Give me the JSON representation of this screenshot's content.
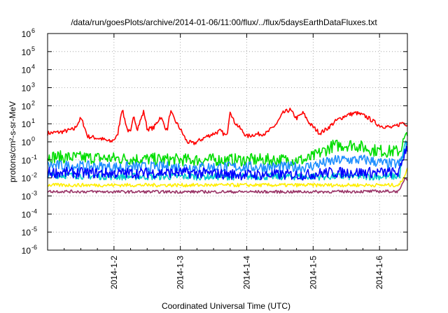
{
  "chart_data": {
    "type": "line",
    "title": "/data/run/goesPlots/archive/2014-01-06/11:00/flux/../flux/5daysEarthDataFluxes.txt",
    "xlabel": "Coordinated Universal Time (UTC)",
    "ylabel": "protons/cm²-s-sr-MeV",
    "yscale": "log",
    "ylim_exponents": [
      -6,
      6
    ],
    "xlim_days": [
      0,
      5.42
    ],
    "grid": true,
    "legend": "none",
    "x_ticks": [
      {
        "label": "2014-1-2",
        "day": 1
      },
      {
        "label": "2014-1-3",
        "day": 2
      },
      {
        "label": "2014-1-4",
        "day": 3
      },
      {
        "label": "2014-1-5",
        "day": 4
      },
      {
        "label": "2014-1-6",
        "day": 5
      }
    ],
    "y_ticks": [
      {
        "base": "10",
        "exp": "6"
      },
      {
        "base": "10",
        "exp": "5"
      },
      {
        "base": "10",
        "exp": "4"
      },
      {
        "base": "10",
        "exp": "3"
      },
      {
        "base": "10",
        "exp": "2"
      },
      {
        "base": "10",
        "exp": "1"
      },
      {
        "base": "10",
        "exp": "0"
      },
      {
        "base": "10",
        "exp": "-1"
      },
      {
        "base": "10",
        "exp": "-2"
      },
      {
        "base": "10",
        "exp": "-3"
      },
      {
        "base": "10",
        "exp": "-4"
      },
      {
        "base": "10",
        "exp": "-5"
      },
      {
        "base": "10",
        "exp": "-6"
      }
    ],
    "series": [
      {
        "color": "#ff0000",
        "noise": 0.12,
        "values": [
          [
            0,
            3
          ],
          [
            0.2,
            3.5
          ],
          [
            0.4,
            5
          ],
          [
            0.5,
            20
          ],
          [
            0.55,
            8
          ],
          [
            0.6,
            2
          ],
          [
            0.8,
            1.5
          ],
          [
            0.95,
            1
          ],
          [
            1.05,
            2
          ],
          [
            1.12,
            70
          ],
          [
            1.2,
            5
          ],
          [
            1.25,
            3
          ],
          [
            1.3,
            30
          ],
          [
            1.35,
            5
          ],
          [
            1.45,
            50
          ],
          [
            1.5,
            5
          ],
          [
            1.6,
            6
          ],
          [
            1.7,
            25
          ],
          [
            1.8,
            4
          ],
          [
            1.85,
            50
          ],
          [
            1.9,
            20
          ],
          [
            2.0,
            5
          ],
          [
            2.1,
            1
          ],
          [
            2.2,
            0.8
          ],
          [
            2.4,
            2
          ],
          [
            2.6,
            4
          ],
          [
            2.7,
            2
          ],
          [
            2.75,
            60
          ],
          [
            2.8,
            15
          ],
          [
            3.0,
            2
          ],
          [
            3.1,
            2.5
          ],
          [
            3.3,
            3
          ],
          [
            3.45,
            10
          ],
          [
            3.55,
            40
          ],
          [
            3.65,
            60
          ],
          [
            3.75,
            20
          ],
          [
            3.85,
            40
          ],
          [
            3.95,
            10
          ],
          [
            4.1,
            3
          ],
          [
            4.2,
            5
          ],
          [
            4.35,
            15
          ],
          [
            4.5,
            30
          ],
          [
            4.65,
            40
          ],
          [
            4.8,
            25
          ],
          [
            5.0,
            8
          ],
          [
            5.2,
            6
          ],
          [
            5.35,
            12
          ],
          [
            5.42,
            9
          ]
        ]
      },
      {
        "color": "#00dd00",
        "noise": 0.35,
        "values": [
          [
            0,
            0.15
          ],
          [
            1,
            0.12
          ],
          [
            2,
            0.1
          ],
          [
            3,
            0.1
          ],
          [
            3.9,
            0.1
          ],
          [
            4.0,
            0.15
          ],
          [
            4.3,
            0.6
          ],
          [
            4.6,
            0.7
          ],
          [
            4.9,
            0.35
          ],
          [
            5.1,
            0.3
          ],
          [
            5.3,
            0.3
          ],
          [
            5.38,
            1.5
          ],
          [
            5.42,
            2
          ]
        ]
      },
      {
        "color": "#00cccc",
        "noise": 0.2,
        "values": [
          [
            0,
            0.015
          ],
          [
            1,
            0.012
          ],
          [
            2,
            0.012
          ],
          [
            3,
            0.012
          ],
          [
            4,
            0.012
          ],
          [
            5,
            0.012
          ],
          [
            5.3,
            0.012
          ],
          [
            5.38,
            0.7
          ],
          [
            5.42,
            1
          ]
        ]
      },
      {
        "color": "#1f8fff",
        "noise": 0.3,
        "values": [
          [
            0,
            0.05
          ],
          [
            1,
            0.04
          ],
          [
            2,
            0.04
          ],
          [
            3,
            0.04
          ],
          [
            3.9,
            0.04
          ],
          [
            4.1,
            0.06
          ],
          [
            4.4,
            0.1
          ],
          [
            4.8,
            0.1
          ],
          [
            5.1,
            0.06
          ],
          [
            5.3,
            0.06
          ],
          [
            5.38,
            0.3
          ],
          [
            5.42,
            0.7
          ]
        ]
      },
      {
        "color": "#0000ff",
        "noise": 0.3,
        "values": [
          [
            0,
            0.02
          ],
          [
            1,
            0.018
          ],
          [
            2,
            0.02
          ],
          [
            3,
            0.015
          ],
          [
            3.9,
            0.015
          ],
          [
            4.2,
            0.02
          ],
          [
            4.8,
            0.02
          ],
          [
            5.3,
            0.02
          ],
          [
            5.38,
            0.3
          ],
          [
            5.42,
            0.5
          ]
        ]
      },
      {
        "color": "#ffee00",
        "noise": 0.1,
        "values": [
          [
            0,
            0.004
          ],
          [
            1,
            0.004
          ],
          [
            2,
            0.004
          ],
          [
            3,
            0.004
          ],
          [
            4,
            0.004
          ],
          [
            5,
            0.004
          ],
          [
            5.3,
            0.004
          ],
          [
            5.42,
            0.03
          ]
        ]
      },
      {
        "color": "#993366",
        "noise": 0.08,
        "values": [
          [
            0,
            0.0018
          ],
          [
            1,
            0.0017
          ],
          [
            2,
            0.0017
          ],
          [
            3,
            0.0017
          ],
          [
            4,
            0.0017
          ],
          [
            5,
            0.0018
          ],
          [
            5.3,
            0.0018
          ],
          [
            5.38,
            0.01
          ],
          [
            5.42,
            0.008
          ]
        ]
      }
    ]
  }
}
